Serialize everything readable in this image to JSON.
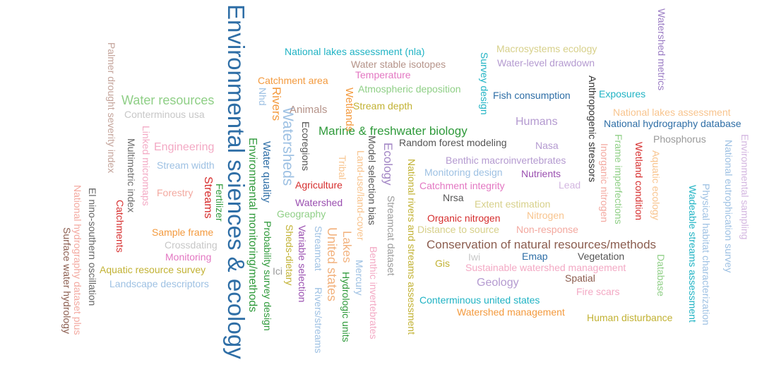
{
  "words": [
    {
      "text": "Environmental sciences & ecology",
      "color": "#2e6ea6"
    },
    {
      "text": "Watersheds",
      "color": "#9ec1e3"
    },
    {
      "text": "Water resources",
      "color": "#8fcf86"
    },
    {
      "text": "Marine & freshwater biology",
      "color": "#2f9a3b"
    },
    {
      "text": "Conservation of natural resources/methods",
      "color": "#8b5d4f"
    },
    {
      "text": "Environmental monitoring/methods",
      "color": "#2f9a3b"
    },
    {
      "text": "National rivers and streams assessment",
      "color": "#c2b234"
    },
    {
      "text": "United states",
      "color": "#f2b27e"
    },
    {
      "text": "Lakes",
      "color": "#f2b27e"
    },
    {
      "text": "Ecology",
      "color": "#a285c4"
    },
    {
      "text": "Rivers",
      "color": "#f39a3e"
    },
    {
      "text": "Streams",
      "color": "#d62e2e"
    },
    {
      "text": "Engineering",
      "color": "#f3a9c4"
    },
    {
      "text": "Humans",
      "color": "#b49ad0"
    },
    {
      "text": "Geology",
      "color": "#b49ad0"
    },
    {
      "text": "Water quality",
      "color": "#2e6ea6"
    },
    {
      "text": "Wetlands",
      "color": "#f39a3e"
    },
    {
      "text": "Animals",
      "color": "#b59389"
    },
    {
      "text": "National lakes assessment (nla)",
      "color": "#20b3c4"
    },
    {
      "text": "Macrosystems ecology",
      "color": "#d7d08a"
    },
    {
      "text": "Water stable isotopes",
      "color": "#b59389"
    },
    {
      "text": "Water-level drawdown",
      "color": "#b49ad0"
    },
    {
      "text": "Watershed metrics",
      "color": "#9a7bc3"
    },
    {
      "text": "Temperature",
      "color": "#e377c2"
    },
    {
      "text": "Catchment area",
      "color": "#f39a3e"
    },
    {
      "text": "Atmospheric deposition",
      "color": "#8fcf86"
    },
    {
      "text": "Survey design",
      "color": "#20b3c4"
    },
    {
      "text": "Fish consumption",
      "color": "#2e6ea6"
    },
    {
      "text": "Anthropogenic stressors",
      "color": "#333333"
    },
    {
      "text": "Exposures",
      "color": "#20b3c4"
    },
    {
      "text": "Stream depth",
      "color": "#c2b234"
    },
    {
      "text": "National lakes assessment",
      "color": "#f8c48e"
    },
    {
      "text": "National hydrography database",
      "color": "#2e6ea6"
    },
    {
      "text": "Palmer drought severity index",
      "color": "#c4a49b"
    },
    {
      "text": "Nhd",
      "color": "#9ec1e3"
    },
    {
      "text": "Conterminous usa",
      "color": "#c7c7c7"
    },
    {
      "text": "Ecoregions",
      "color": "#555555"
    },
    {
      "text": "Phosphorus",
      "color": "#9a9a9a"
    },
    {
      "text": "Environmental sampling",
      "color": "#d3b6e0"
    },
    {
      "text": "Random forest modeling",
      "color": "#555555"
    },
    {
      "text": "Nasa",
      "color": "#b49ad0"
    },
    {
      "text": "Linked micromaps",
      "color": "#f3a9c4"
    },
    {
      "text": "Multimetric index",
      "color": "#6b6b6b"
    },
    {
      "text": "Stream width",
      "color": "#9ec1e3"
    },
    {
      "text": "Tribal",
      "color": "#f8c48e"
    },
    {
      "text": "Model selection bias",
      "color": "#555555"
    },
    {
      "text": "Land-use/land-cover",
      "color": "#f8c48e"
    },
    {
      "text": "Frame imperfections",
      "color": "#8fcf86"
    },
    {
      "text": "Inorganic nitrogen",
      "color": "#f3a9a0"
    },
    {
      "text": "Wetland condition",
      "color": "#d62e2e"
    },
    {
      "text": "Aquatic ecology",
      "color": "#f8c48e"
    },
    {
      "text": "National eutrophication survey",
      "color": "#9ec1e3"
    },
    {
      "text": "Benthic macroinvertebrates",
      "color": "#b49ad0"
    },
    {
      "text": "Monitoring design",
      "color": "#9ec1e3"
    },
    {
      "text": "Nutrients",
      "color": "#9a4fb0"
    },
    {
      "text": "Lead",
      "color": "#d3b6e0"
    },
    {
      "text": "El nino-southern oscillation",
      "color": "#666666"
    },
    {
      "text": "National hydrography dataset plus",
      "color": "#f3a9a0"
    },
    {
      "text": "Surface water hydrology",
      "color": "#8b5d4f"
    },
    {
      "text": "Catchments",
      "color": "#d62e2e"
    },
    {
      "text": "Forestry",
      "color": "#f3a9a0"
    },
    {
      "text": "Fertilizer",
      "color": "#2f9a3b"
    },
    {
      "text": "Agriculture",
      "color": "#d62e2e"
    },
    {
      "text": "Catchment integrity",
      "color": "#e377c2"
    },
    {
      "text": "Watershed",
      "color": "#9a4fb0"
    },
    {
      "text": "Nrsa",
      "color": "#555555"
    },
    {
      "text": "Extent estimation",
      "color": "#d7d08a"
    },
    {
      "text": "Physical habitat characterization",
      "color": "#9ec1e3"
    },
    {
      "text": "Wadeable streams assessment",
      "color": "#20b3c4"
    },
    {
      "text": "Geography",
      "color": "#8fcf86"
    },
    {
      "text": "Streamcat dataset",
      "color": "#9a9a9a"
    },
    {
      "text": "Nitrogen",
      "color": "#f8c48e"
    },
    {
      "text": "Organic nitrogen",
      "color": "#d62e2e"
    },
    {
      "text": "Sample frame",
      "color": "#f39a3e"
    },
    {
      "text": "Probability survey design",
      "color": "#2f9a3b"
    },
    {
      "text": "Variable selection",
      "color": "#9a4fb0"
    },
    {
      "text": "Streamcat",
      "color": "#9ec1e3"
    },
    {
      "text": "Sheds-dietary",
      "color": "#c2b234"
    },
    {
      "text": "Distance to source",
      "color": "#d7d08a"
    },
    {
      "text": "Non-response",
      "color": "#f3a9a0"
    },
    {
      "text": "Crossdating",
      "color": "#c7c7c7"
    },
    {
      "text": "Hydrologic units",
      "color": "#2f9a3b"
    },
    {
      "text": "Benthic invertebrates",
      "color": "#f3a9c4"
    },
    {
      "text": "Monitoring",
      "color": "#e377c2"
    },
    {
      "text": "Ici",
      "color": "#9a9a9a"
    },
    {
      "text": "Iwi",
      "color": "#c7c7c7"
    },
    {
      "text": "Emap",
      "color": "#2e6ea6"
    },
    {
      "text": "Vegetation",
      "color": "#555555"
    },
    {
      "text": "Database",
      "color": "#8fcf86"
    },
    {
      "text": "Gis",
      "color": "#c2b234"
    },
    {
      "text": "Sustainable watershed management",
      "color": "#f3a9c4"
    },
    {
      "text": "Aquatic resource survey",
      "color": "#c2b234"
    },
    {
      "text": "Rivers/streams",
      "color": "#9ec1e3"
    },
    {
      "text": "Mercury",
      "color": "#9ec1e3"
    },
    {
      "text": "Spatial",
      "color": "#8b5d4f"
    },
    {
      "text": "Landscape descriptors",
      "color": "#9ec1e3"
    },
    {
      "text": "Fire scars",
      "color": "#f3a9c4"
    },
    {
      "text": "Conterminous united states",
      "color": "#20b3c4"
    },
    {
      "text": "Watershed management",
      "color": "#f39a3e"
    },
    {
      "text": "Human disturbance",
      "color": "#c2b234"
    }
  ]
}
